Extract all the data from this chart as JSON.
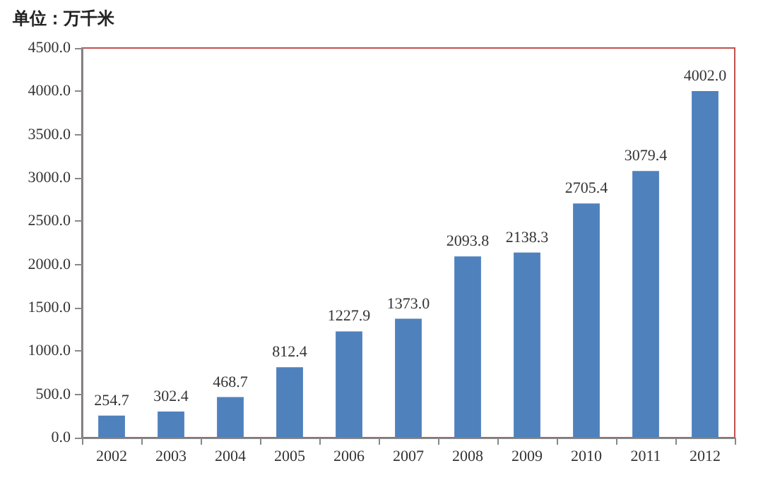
{
  "chart_data": {
    "type": "bar",
    "title": "单位：万千米",
    "categories": [
      "2002",
      "2003",
      "2004",
      "2005",
      "2006",
      "2007",
      "2008",
      "2009",
      "2010",
      "2011",
      "2012"
    ],
    "values": [
      254.7,
      302.4,
      468.7,
      812.4,
      1227.9,
      1373.0,
      2093.8,
      2138.3,
      2705.4,
      3079.4,
      4002.0
    ],
    "value_labels": [
      "254.7",
      "302.4",
      "468.7",
      "812.4",
      "1227.9",
      "1373.0",
      "2093.8",
      "2138.3",
      "2705.4",
      "3079.4",
      "4002.0"
    ],
    "color": "#4f81bd",
    "ylim": [
      0,
      4500
    ],
    "yticks": [
      {
        "value": 0,
        "label": "0.0"
      },
      {
        "value": 500,
        "label": "500.0"
      },
      {
        "value": 1000,
        "label": "1000.0"
      },
      {
        "value": 1500,
        "label": "1500.0"
      },
      {
        "value": 2000,
        "label": "2000.0"
      },
      {
        "value": 2500,
        "label": "2500.0"
      },
      {
        "value": 3000,
        "label": "3000.0"
      },
      {
        "value": 3500,
        "label": "3500.0"
      },
      {
        "value": 4000,
        "label": "4000.0"
      },
      {
        "value": 4500,
        "label": "4500.0"
      }
    ],
    "grid": false
  }
}
